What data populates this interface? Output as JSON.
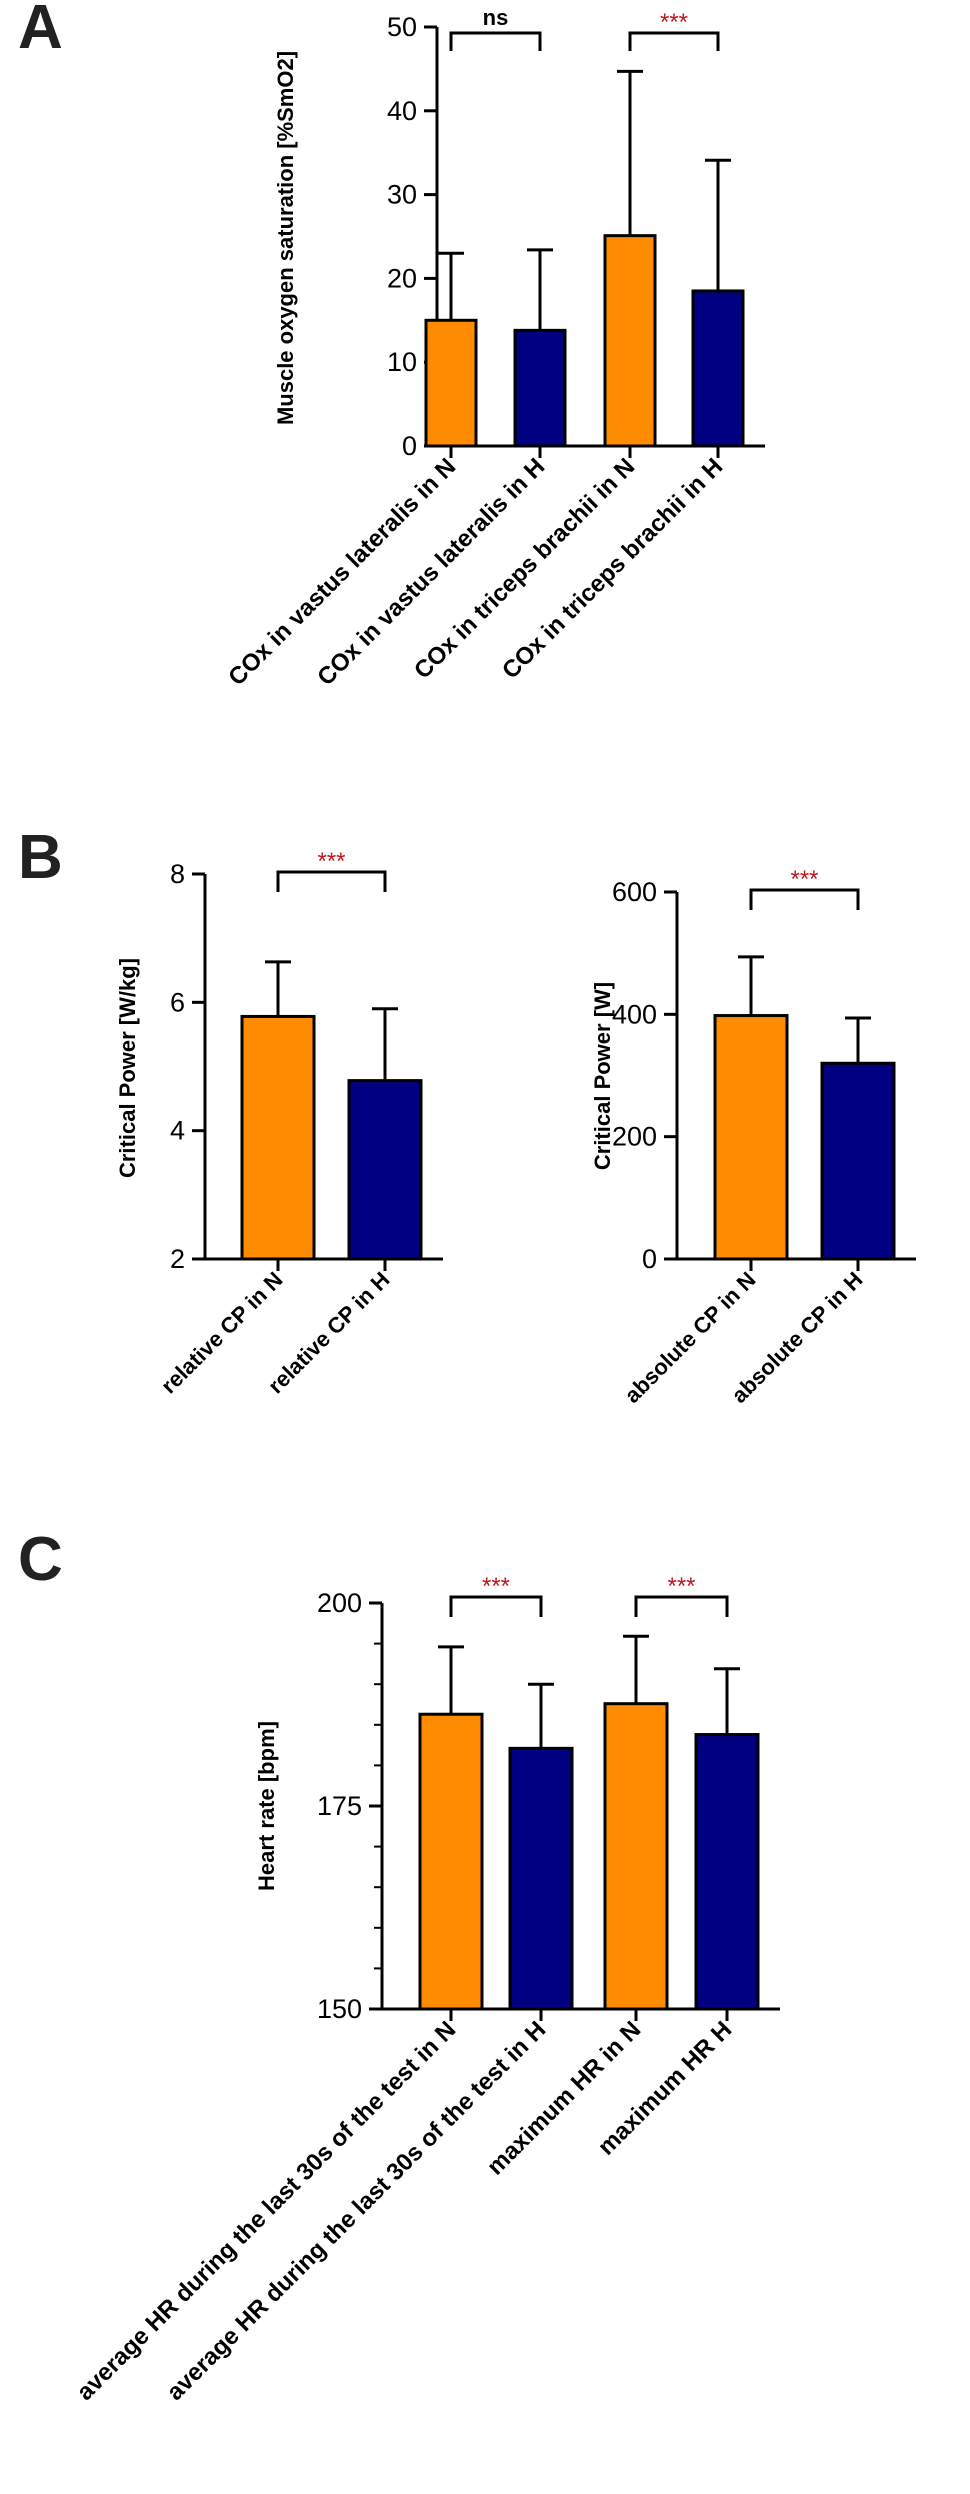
{
  "colors": {
    "normoxia": "#FF8C00",
    "hypoxia": "#000080",
    "significance": "#C0161E",
    "axis": "#000000"
  },
  "panels": [
    {
      "letter": "A"
    },
    {
      "letter": "B"
    },
    {
      "letter": "C"
    }
  ],
  "chart_data": [
    {
      "panel": "A",
      "type": "bar",
      "ylabel": "Muscle oxygen saturation [%SmO2]",
      "ylim": [
        0,
        50
      ],
      "yticks": [
        "0",
        "10",
        "20",
        "30",
        "40",
        "50"
      ],
      "categories": [
        "COx in vastus lateralis in N",
        "COx in vastus lateralis in H",
        "COx in triceps brachii in N",
        "COx in triceps brachii in H"
      ],
      "values": [
        15.0,
        13.8,
        25.1,
        18.5
      ],
      "errors": [
        8.0,
        9.6,
        19.6,
        15.6
      ],
      "bar_colors": [
        "#FF8C00",
        "#000080",
        "#FF8C00",
        "#000080"
      ],
      "significance": [
        {
          "between": [
            0,
            1
          ],
          "label": "ns",
          "color": "#000000"
        },
        {
          "between": [
            2,
            3
          ],
          "label": "***",
          "color": "#C0161E"
        }
      ],
      "grid": false
    },
    {
      "panel": "B-left",
      "type": "bar",
      "ylabel": "Critical Power [W/kg]",
      "ylim": [
        2,
        8
      ],
      "yticks": [
        "2",
        "4",
        "6",
        "8"
      ],
      "categories": [
        "relative CP in N",
        "relative CP in H"
      ],
      "values": [
        5.78,
        4.78
      ],
      "errors": [
        0.85,
        1.12
      ],
      "bar_colors": [
        "#FF8C00",
        "#000080"
      ],
      "significance": [
        {
          "between": [
            0,
            1
          ],
          "label": "***",
          "color": "#C0161E"
        }
      ],
      "grid": false
    },
    {
      "panel": "B-right",
      "type": "bar",
      "ylabel": "Critical Power [W]",
      "ylim": [
        0,
        600
      ],
      "yticks": [
        "0",
        "200",
        "400",
        "600"
      ],
      "categories": [
        "absolute CP in N",
        "absolute CP in H"
      ],
      "values": [
        398,
        320
      ],
      "errors": [
        96,
        74
      ],
      "bar_colors": [
        "#FF8C00",
        "#000080"
      ],
      "significance": [
        {
          "between": [
            0,
            1
          ],
          "label": "***",
          "color": "#C0161E"
        }
      ],
      "grid": false
    },
    {
      "panel": "C",
      "type": "bar",
      "ylabel": "Heart rate [bpm]",
      "ylim": [
        150,
        200
      ],
      "yticks": [
        "150",
        "175",
        "200"
      ],
      "categories": [
        "average HR during the last 30s of the test in N",
        "average HR during the last 30s of the test in H",
        "maximum HR in N",
        "maximum HR H"
      ],
      "values": [
        186.3,
        182.1,
        187.6,
        183.8
      ],
      "errors": [
        8.3,
        7.9,
        8.3,
        8.1
      ],
      "bar_colors": [
        "#FF8C00",
        "#000080",
        "#FF8C00",
        "#000080"
      ],
      "significance": [
        {
          "between": [
            0,
            1
          ],
          "label": "***",
          "color": "#C0161E"
        },
        {
          "between": [
            2,
            3
          ],
          "label": "***",
          "color": "#C0161E"
        }
      ],
      "grid": false
    }
  ]
}
